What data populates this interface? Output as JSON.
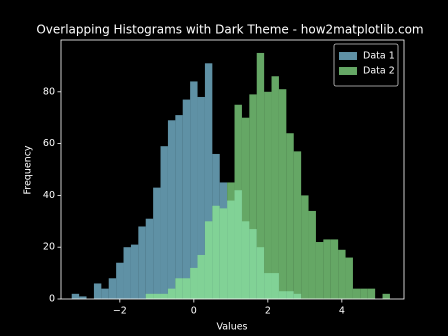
{
  "chart_data": {
    "type": "histogram",
    "title": "Overlapping Histograms with Dark Theme - how2matplotlib.com",
    "xlabel": "Values",
    "ylabel": "Frequency",
    "xlim": [
      -3.59,
      5.68
    ],
    "ylim": [
      0,
      100
    ],
    "xticks": [
      {
        "value": -2,
        "label": "−2"
      },
      0,
      2,
      4
    ],
    "yticks": [
      0,
      20,
      40,
      60,
      80
    ],
    "alpha": 0.7,
    "legend": "upper right",
    "series": [
      {
        "name": "Data 1",
        "color": "#87ceeb",
        "bins": [
          -3.3,
          -3.1,
          -2.9,
          -2.7,
          -2.5,
          -2.3,
          -2.1,
          -1.9,
          -1.7,
          -1.5,
          -1.3,
          -1.1,
          -0.9,
          -0.7,
          -0.5,
          -0.3,
          -0.1,
          0.1,
          0.3,
          0.5,
          0.7,
          0.9,
          1.1,
          1.3,
          1.5,
          1.7,
          1.9,
          2.1,
          2.3,
          2.5,
          2.7,
          2.9
        ],
        "values": [
          2,
          1,
          0,
          6,
          4,
          8,
          14,
          20,
          21,
          28,
          31,
          43,
          59,
          69,
          71,
          77,
          84,
          78,
          91,
          56,
          45,
          38,
          42,
          30,
          27,
          20,
          10,
          10,
          3,
          3,
          2
        ]
      },
      {
        "name": "Data 2",
        "color": "#90ee90",
        "bins": [
          -1.3,
          -1.1,
          -0.9,
          -0.7,
          -0.5,
          -0.3,
          -0.1,
          0.1,
          0.3,
          0.5,
          0.7,
          0.9,
          1.1,
          1.3,
          1.5,
          1.7,
          1.9,
          2.1,
          2.3,
          2.5,
          2.7,
          2.9,
          3.1,
          3.3,
          3.5,
          3.7,
          3.9,
          4.1,
          4.3,
          4.5,
          4.7,
          4.9,
          5.1,
          5.3
        ],
        "values": [
          2,
          2,
          2,
          4,
          8,
          8,
          12,
          17,
          30,
          36,
          35,
          45,
          75,
          70,
          79,
          95,
          80,
          86,
          81,
          64,
          57,
          40,
          34,
          22,
          23,
          23,
          19,
          16,
          4,
          4,
          4,
          0,
          2
        ]
      }
    ]
  }
}
